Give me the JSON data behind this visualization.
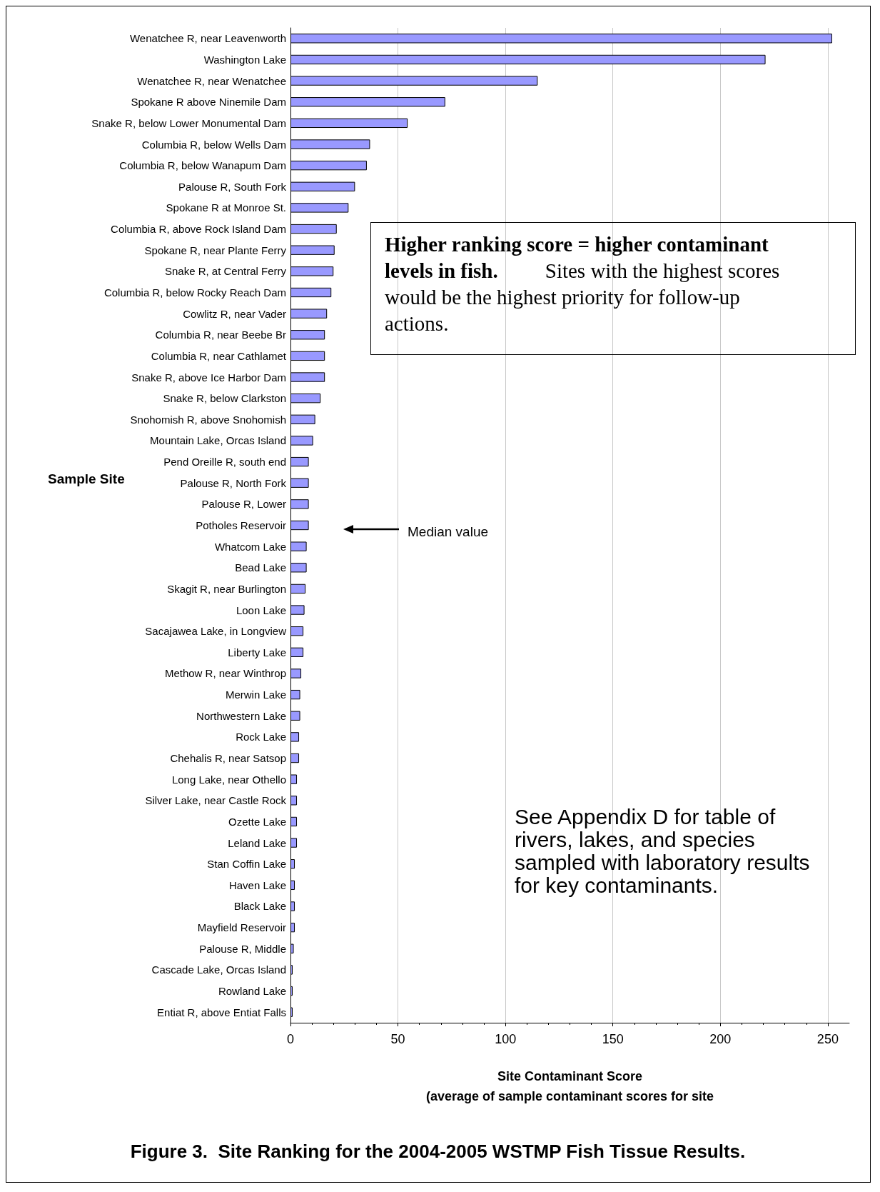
{
  "chart_data": {
    "type": "bar",
    "orientation": "horizontal",
    "title": "Figure 3.  Site Ranking for the 2004-2005 WSTMP Fish Tissue Results.",
    "xlabel": "Site Contaminant Score\n(average of sample contaminant scores for site",
    "ylabel": "Sample Site",
    "categories": [
      "Wenatchee R, near Leavenworth",
      "Washington Lake",
      "Wenatchee R, near Wenatchee",
      "Spokane R above Ninemile Dam",
      "Snake R, below Lower Monumental Dam",
      "Columbia R, below Wells Dam",
      "Columbia R, below Wanapum Dam",
      "Palouse R, South Fork",
      "Spokane R at Monroe St.",
      "Columbia R, above Rock Island Dam",
      "Spokane R, near Plante Ferry",
      "Snake R, at Central Ferry",
      "Columbia R, below Rocky Reach Dam",
      "Cowlitz R, near Vader",
      "Columbia R, near Beebe Br",
      "Columbia R, near Cathlamet",
      "Snake R, above Ice Harbor Dam",
      "Snake R, below Clarkston",
      "Snohomish R, above Snohomish",
      "Mountain Lake, Orcas Island",
      "Pend Oreille R, south end",
      "Palouse R, North Fork",
      "Palouse R, Lower",
      "Potholes Reservoir",
      "Whatcom Lake",
      "Bead Lake",
      "Skagit R, near Burlington",
      "Loon Lake",
      "Sacajawea Lake, in Longview",
      "Liberty Lake",
      "Methow R, near Winthrop",
      "Merwin Lake",
      "Northwestern Lake",
      "Rock Lake",
      "Chehalis R, near Satsop",
      "Long Lake, near Othello",
      "Silver Lake, near Castle Rock",
      "Ozette Lake",
      "Leland Lake",
      "Stan Coffin Lake",
      "Haven Lake",
      "Black Lake",
      "Mayfield Reservoir",
      "Palouse R, Middle",
      "Cascade Lake, Orcas Island",
      "Rowland Lake",
      "Entiat R, above Entiat Falls"
    ],
    "values": [
      252,
      221,
      115,
      72,
      54.5,
      37,
      35.5,
      30,
      27,
      21.5,
      20.5,
      20,
      19,
      17,
      16,
      16,
      16,
      14,
      11.5,
      10.5,
      8.5,
      8.5,
      8.5,
      8.5,
      7.5,
      7.5,
      7,
      6.5,
      6,
      6,
      5,
      4.5,
      4.5,
      4,
      4,
      3,
      3,
      3,
      3,
      2,
      2,
      2,
      2,
      1.5,
      1,
      1,
      1
    ],
    "color": "#9999ff",
    "xlim": [
      0,
      260
    ],
    "xticks": [
      0,
      50,
      100,
      150,
      200,
      250
    ],
    "grid": "x",
    "annotations": [
      "Higher ranking score = higher contaminant levels in fish.",
      "Sites with the highest scores would be the highest priority for follow-up actions.",
      "Median value",
      "See Appendix D for table of rivers, lakes, and species sampled with laboratory results for key contaminants."
    ]
  }
}
